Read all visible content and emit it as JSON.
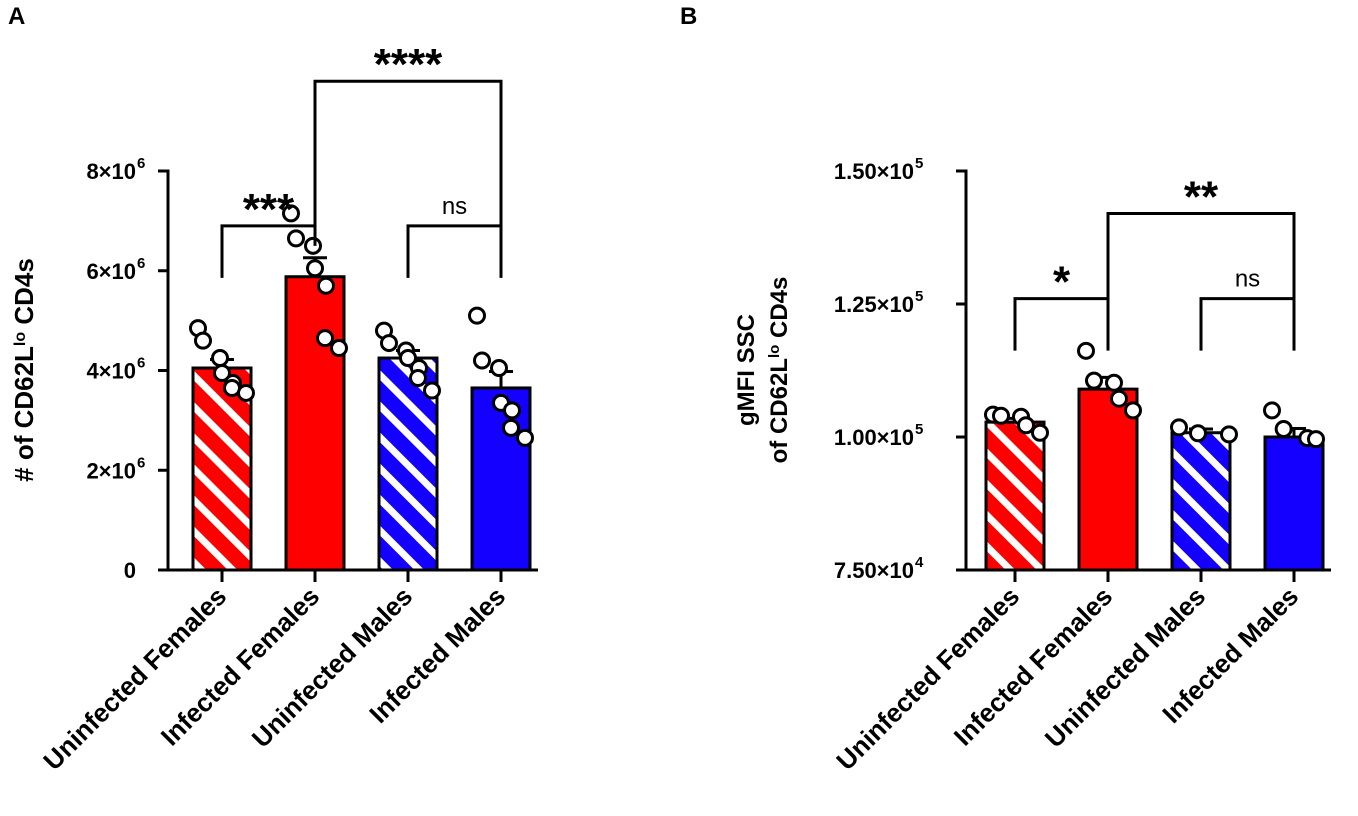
{
  "chart_data": [
    {
      "type": "bar",
      "panel_label": "A",
      "ylabel_main": "# of CD62L",
      "ylabel_sup": "lo",
      "ylabel_tail": " CD4s",
      "ylim": [
        0,
        8000000
      ],
      "yticks": [
        {
          "value": 0,
          "mant": "0",
          "exp": ""
        },
        {
          "value": 2000000,
          "mant": "2×10",
          "exp": "6"
        },
        {
          "value": 4000000,
          "mant": "4×10",
          "exp": "6"
        },
        {
          "value": 6000000,
          "mant": "6×10",
          "exp": "6"
        },
        {
          "value": 8000000,
          "mant": "8×10",
          "exp": "6"
        }
      ],
      "categories": [
        "Uninfected Females",
        "Infected Females",
        "Uninfected Males",
        "Infected Males"
      ],
      "means": [
        4050000,
        5880000,
        4250000,
        3650000
      ],
      "sem": [
        170000,
        380000,
        150000,
        330000
      ],
      "points": [
        [
          4850000,
          4600000,
          4250000,
          3950000,
          3750000,
          3650000,
          3550000
        ],
        [
          7150000,
          6650000,
          6500000,
          6050000,
          5700000,
          4650000,
          4450000
        ],
        [
          4800000,
          4550000,
          4400000,
          4250000,
          4050000,
          3850000,
          3600000
        ],
        [
          5100000,
          4200000,
          4050000,
          3350000,
          3200000,
          2850000,
          2650000
        ]
      ],
      "significance": [
        {
          "from": 0,
          "to": 1,
          "label": "***",
          "y": 6900000
        },
        {
          "from": 2,
          "to": 3,
          "label": "ns",
          "y": 6900000
        },
        {
          "from": 1,
          "to": 3,
          "label": "****",
          "y": 9800000
        }
      ]
    },
    {
      "type": "bar",
      "panel_label": "B",
      "ylabel_line1": "gMFI SSC",
      "ylabel_main": "of CD62L",
      "ylabel_sup": "lo",
      "ylabel_tail": " CD4s",
      "ylim": [
        75000,
        150000
      ],
      "yticks": [
        {
          "value": 75000,
          "mant": "7.50×10",
          "exp": "4"
        },
        {
          "value": 100000,
          "mant": "1.00×10",
          "exp": "5"
        },
        {
          "value": 125000,
          "mant": "1.25×10",
          "exp": "5"
        },
        {
          "value": 150000,
          "mant": "1.50×10",
          "exp": "5"
        }
      ],
      "categories": [
        "Uninfected Females",
        "Infected Females",
        "Uninfected Males",
        "Infected Males"
      ],
      "means": [
        102800,
        109000,
        100800,
        100000
      ],
      "sem": [
        700,
        2200,
        700,
        1600
      ],
      "points": [
        [
          104200,
          104000,
          103800,
          102200,
          100800
        ],
        [
          116200,
          110600,
          110200,
          107200,
          105000
        ],
        [
          101800,
          100700,
          100500
        ],
        [
          105000,
          101500,
          99800,
          99600
        ]
      ],
      "significance": [
        {
          "from": 0,
          "to": 1,
          "label": "*",
          "y": 126000
        },
        {
          "from": 2,
          "to": 3,
          "label": "ns",
          "y": 126000
        },
        {
          "from": 1,
          "to": 3,
          "label": "**",
          "y": 142000
        }
      ]
    }
  ],
  "colors": {
    "female": "#ff0000",
    "male": "#1400ff",
    "stripe": "#ffffff",
    "ink": "#000000"
  }
}
